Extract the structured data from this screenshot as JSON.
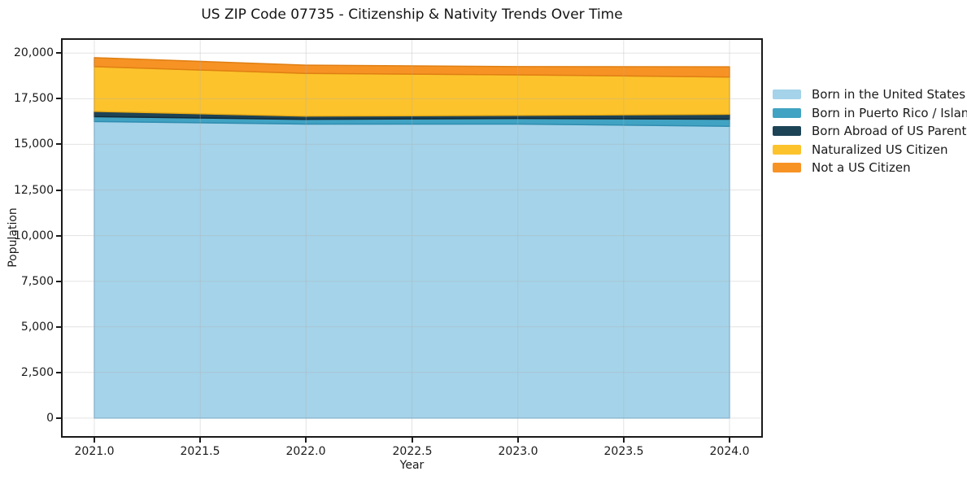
{
  "chart": {
    "title": "US ZIP Code 07735 - Citizenship & Nativity Trends Over Time",
    "xlabel": "Year",
    "ylabel": "Population"
  },
  "chart_data": {
    "type": "area",
    "stacked": true,
    "title": "US ZIP Code 07735 - Citizenship & Nativity Trends Over Time",
    "xlabel": "Year",
    "ylabel": "Population",
    "x": [
      2021,
      2022,
      2023,
      2024
    ],
    "series": [
      {
        "name": "Born in the United States",
        "color": "#a5d3e9",
        "edge_color": "#86bedd",
        "values": [
          16250,
          16110,
          16110,
          15990
        ]
      },
      {
        "name": "Born in Puerto Rico / Islands",
        "color": "#41a3c3",
        "edge_color": "#2f8db0",
        "values": [
          270,
          260,
          310,
          390
        ]
      },
      {
        "name": "Born Abroad of US Parent(s)",
        "color": "#1d4356",
        "edge_color": "#122a37",
        "values": [
          290,
          180,
          170,
          270
        ]
      },
      {
        "name": "Naturalized US Citizen",
        "color": "#fcc32d",
        "edge_color": "#e9ad17",
        "values": [
          2450,
          2340,
          2220,
          2040
        ]
      },
      {
        "name": "Not a US Citizen",
        "color": "#f79325",
        "edge_color": "#e07f12",
        "values": [
          490,
          450,
          450,
          560
        ]
      }
    ],
    "totals": [
      19750,
      19340,
      19260,
      19250
    ],
    "xlim": [
      2020.85,
      2024.15
    ],
    "ylim": [
      -987,
      20727
    ],
    "xticks": {
      "values": [
        2021.0,
        2021.5,
        2022.0,
        2022.5,
        2023.0,
        2023.5,
        2024.0
      ],
      "labels": [
        "2021.0",
        "2021.5",
        "2022.0",
        "2022.5",
        "2023.0",
        "2023.5",
        "2024.0"
      ]
    },
    "yticks": {
      "values": [
        0,
        2500,
        5000,
        7500,
        10000,
        12500,
        15000,
        17500,
        20000
      ],
      "labels": [
        "0",
        "2,500",
        "5,000",
        "7,500",
        "10,000",
        "12,500",
        "15,000",
        "17,500",
        "20,000"
      ]
    },
    "grid": true,
    "grid_color": "rgba(176,176,176,0.35)",
    "legend_position": "right-of-plot",
    "spine_color": "#1a1a1a",
    "background": "#ffffff"
  }
}
